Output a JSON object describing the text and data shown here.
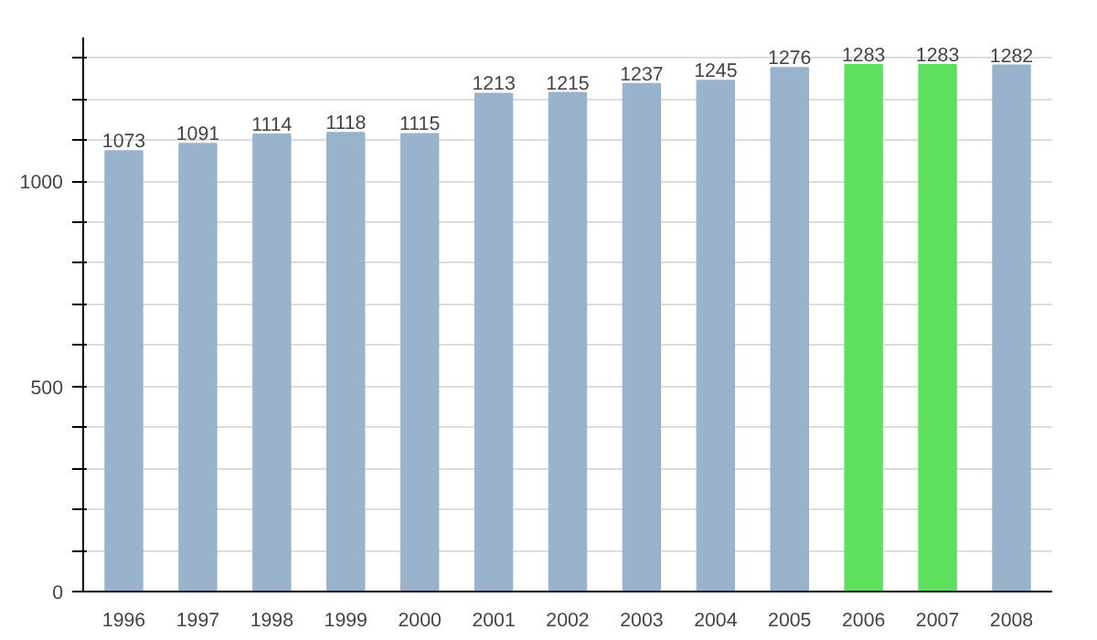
{
  "chart_data": {
    "type": "bar",
    "categories": [
      "1996",
      "1997",
      "1998",
      "1999",
      "2000",
      "2001",
      "2002",
      "2003",
      "2004",
      "2005",
      "2006",
      "2007",
      "2008"
    ],
    "values": [
      1073,
      1091,
      1114,
      1118,
      1115,
      1213,
      1215,
      1237,
      1245,
      1276,
      1283,
      1283,
      1282
    ],
    "colors": [
      "#9ab3cc",
      "#9ab3cc",
      "#9ab3cc",
      "#9ab3cc",
      "#9ab3cc",
      "#9ab3cc",
      "#9ab3cc",
      "#9ab3cc",
      "#9ab3cc",
      "#9ab3cc",
      "#5ee05e",
      "#5ee05e",
      "#9ab3cc"
    ],
    "ylim": [
      0,
      1350
    ],
    "yticks": [
      0,
      {
        "value": 100,
        "label": null
      },
      {
        "value": 200,
        "label": null
      },
      {
        "value": 300,
        "label": null
      },
      {
        "value": 400,
        "label": null
      },
      500,
      {
        "value": 600,
        "label": null
      },
      {
        "value": 700,
        "label": null
      },
      {
        "value": 800,
        "label": null
      },
      {
        "value": 900,
        "label": null
      },
      1000,
      {
        "value": 1100,
        "label": null
      },
      {
        "value": 1200,
        "label": null
      },
      {
        "value": 1300,
        "label": null
      }
    ],
    "grid": "y",
    "data_labels": true
  }
}
